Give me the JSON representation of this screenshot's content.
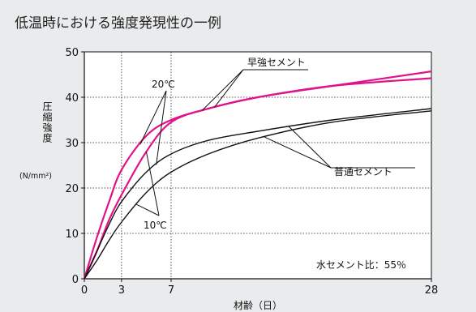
{
  "title": "低温時における強度発現性の一例",
  "colors": {
    "background": "#e9ebec",
    "early_strength": "#e0148a",
    "ordinary": "#111111"
  },
  "chart_data": {
    "type": "line",
    "xlabel": "材齢（日）",
    "ylabel": "圧縮強度",
    "ylabel_unit": "(N/mm²)",
    "xlim": [
      0,
      28
    ],
    "ylim": [
      0,
      50
    ],
    "xticks": [
      0,
      3,
      7,
      28
    ],
    "yticks": [
      0,
      10,
      20,
      30,
      40,
      50
    ],
    "grid": "dotted at x = 3, 7 and y = 10, 20, 30, 40",
    "annotations": {
      "early_label": "早強セメント",
      "ordinary_label": "普通セメント",
      "temp20_label": "20℃",
      "temp10_label": "10℃",
      "note": "水セメント比：55％"
    },
    "series": [
      {
        "cement": "早強セメント",
        "temperature": "20℃",
        "color": "#e0148a",
        "points": [
          [
            0,
            0
          ],
          [
            1,
            9
          ],
          [
            2,
            17
          ],
          [
            3,
            24
          ],
          [
            5,
            31.5
          ],
          [
            7,
            35
          ],
          [
            10,
            37.5
          ],
          [
            14,
            40
          ],
          [
            20,
            42.5
          ],
          [
            28,
            45.7
          ]
        ]
      },
      {
        "cement": "早強セメント",
        "temperature": "10℃",
        "color": "#e0148a",
        "points": [
          [
            0,
            0
          ],
          [
            1,
            6
          ],
          [
            2,
            13
          ],
          [
            3,
            18.5
          ],
          [
            5,
            28
          ],
          [
            7,
            34.5
          ],
          [
            10,
            37.5
          ],
          [
            14,
            40
          ],
          [
            20,
            42.5
          ],
          [
            28,
            44.2
          ]
        ]
      },
      {
        "cement": "普通セメント",
        "temperature": "20℃",
        "color": "#111111",
        "points": [
          [
            0,
            0
          ],
          [
            1,
            6
          ],
          [
            2,
            12
          ],
          [
            3,
            17
          ],
          [
            5,
            23.5
          ],
          [
            7,
            27.5
          ],
          [
            10,
            30.5
          ],
          [
            14,
            32.5
          ],
          [
            20,
            35
          ],
          [
            28,
            37.5
          ]
        ]
      },
      {
        "cement": "普通セメント",
        "temperature": "10℃",
        "color": "#111111",
        "points": [
          [
            0,
            0
          ],
          [
            1,
            4
          ],
          [
            2,
            8.5
          ],
          [
            3,
            12.5
          ],
          [
            5,
            19
          ],
          [
            7,
            23.5
          ],
          [
            10,
            27.5
          ],
          [
            14,
            31
          ],
          [
            20,
            34.5
          ],
          [
            28,
            37
          ]
        ]
      }
    ]
  }
}
